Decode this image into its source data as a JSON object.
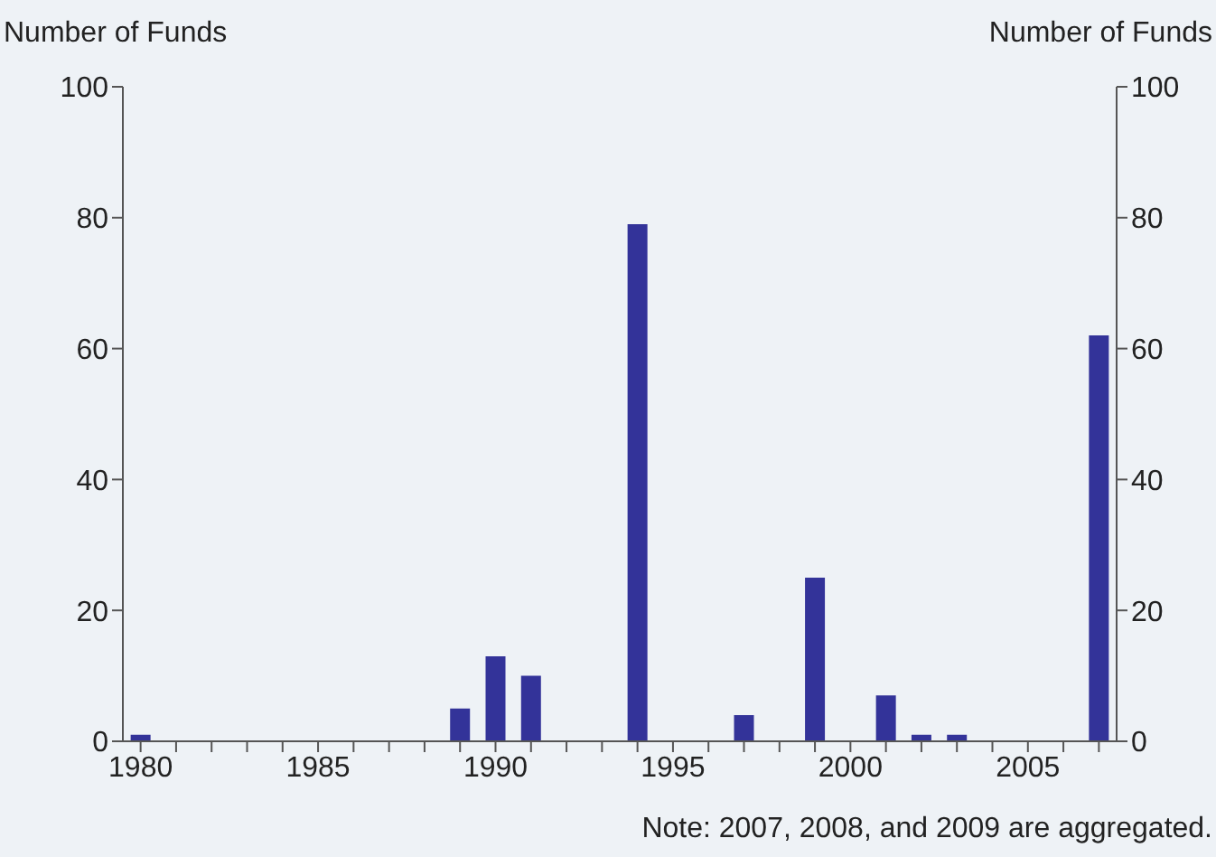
{
  "chart_data": {
    "type": "bar",
    "ylabel": "Number of Funds",
    "y2label": "Number of Funds",
    "categories": [
      "1980",
      null,
      null,
      null,
      null,
      "1985",
      null,
      null,
      null,
      null,
      "1990",
      null,
      null,
      null,
      null,
      "1995",
      null,
      null,
      null,
      null,
      "2000",
      null,
      null,
      null,
      null,
      "2005",
      null,
      null
    ],
    "values": [
      1,
      0,
      0,
      0,
      0,
      0,
      0,
      0,
      0,
      5,
      13,
      10,
      0,
      0,
      79,
      0,
      0,
      4,
      0,
      25,
      0,
      7,
      1,
      1,
      0,
      0,
      0,
      62
    ],
    "color": "#333399",
    "ylim": [
      0,
      100
    ],
    "yticks": [
      0,
      20,
      40,
      60,
      80,
      100
    ],
    "y2lim": [
      0,
      100
    ],
    "y2ticks": [
      0,
      20,
      40,
      60,
      80,
      100
    ],
    "grid": false,
    "annotations": [
      "Note: 2007, 2008, and 2009 are aggregated."
    ]
  }
}
